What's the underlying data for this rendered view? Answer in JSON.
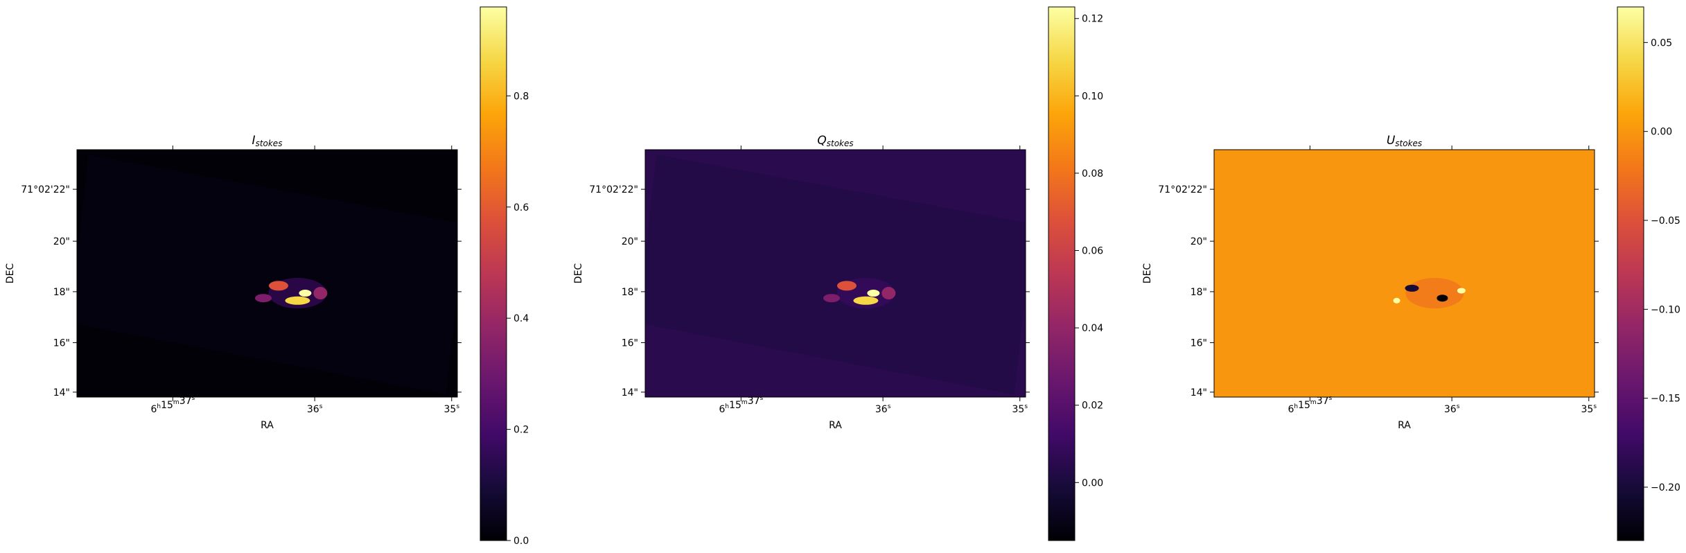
{
  "chart_data": [
    {
      "type": "heatmap",
      "title": "I",
      "title_subscript": "stokes",
      "xlabel": "RA",
      "ylabel": "DEC",
      "x_ticks": [
        {
          "main": "6",
          "u1": "h",
          "mid": "15",
          "u2": "m",
          "last": "37",
          "u3": "s"
        },
        {
          "main": "",
          "u1": "",
          "mid": "",
          "u2": "",
          "last": "36",
          "u3": "s"
        },
        {
          "main": "",
          "u1": "",
          "mid": "",
          "u2": "",
          "last": "35",
          "u3": "s"
        }
      ],
      "y_ticks": [
        "71°02'22\"",
        "20\"",
        "18\"",
        "16\"",
        "14\""
      ],
      "colormap": "inferno",
      "colorbar": {
        "min": 0.0,
        "max": 0.96,
        "ticks": [
          0.0,
          0.2,
          0.4,
          0.6,
          0.8
        ],
        "tick_labels": [
          "0.0",
          "0.2",
          "0.4",
          "0.6",
          "0.8"
        ]
      },
      "background_value": 0.005,
      "field_value": 0.02
    },
    {
      "type": "heatmap",
      "title": "Q",
      "title_subscript": "stokes",
      "xlabel": "RA",
      "ylabel": "DEC",
      "x_ticks": [
        {
          "main": "6",
          "u1": "h",
          "mid": "15",
          "u2": "m",
          "last": "37",
          "u3": "s"
        },
        {
          "main": "",
          "u1": "",
          "mid": "",
          "u2": "",
          "last": "36",
          "u3": "s"
        },
        {
          "main": "",
          "u1": "",
          "mid": "",
          "u2": "",
          "last": "35",
          "u3": "s"
        }
      ],
      "y_ticks": [
        "71°02'22\"",
        "20\"",
        "18\"",
        "16\"",
        "14\""
      ],
      "colormap": "inferno",
      "colorbar": {
        "min": -0.015,
        "max": 0.123,
        "ticks": [
          0.0,
          0.02,
          0.04,
          0.06,
          0.08,
          0.1,
          0.12
        ],
        "tick_labels": [
          "0.00",
          "0.02",
          "0.04",
          "0.06",
          "0.08",
          "0.10",
          "0.12"
        ]
      },
      "background_value": 0.005,
      "field_value": 0.003
    },
    {
      "type": "heatmap",
      "title": "U",
      "title_subscript": "stokes",
      "xlabel": "RA",
      "ylabel": "DEC",
      "x_ticks": [
        {
          "main": "6",
          "u1": "h",
          "mid": "15",
          "u2": "m",
          "last": "37",
          "u3": "s"
        },
        {
          "main": "",
          "u1": "",
          "mid": "",
          "u2": "",
          "last": "36",
          "u3": "s"
        },
        {
          "main": "",
          "u1": "",
          "mid": "",
          "u2": "",
          "last": "35",
          "u3": "s"
        }
      ],
      "y_ticks": [
        "71°02'22\"",
        "20\"",
        "18\"",
        "16\"",
        "14\""
      ],
      "colormap": "inferno",
      "colorbar": {
        "min": -0.23,
        "max": 0.07,
        "ticks": [
          0.05,
          0.0,
          -0.05,
          -0.1,
          -0.15,
          -0.2
        ],
        "tick_labels": [
          "0.05",
          "0.00",
          "−0.05",
          "−0.10",
          "−0.15",
          "−0.20"
        ]
      },
      "background_value": 0.0,
      "field_value": 0.0
    }
  ]
}
